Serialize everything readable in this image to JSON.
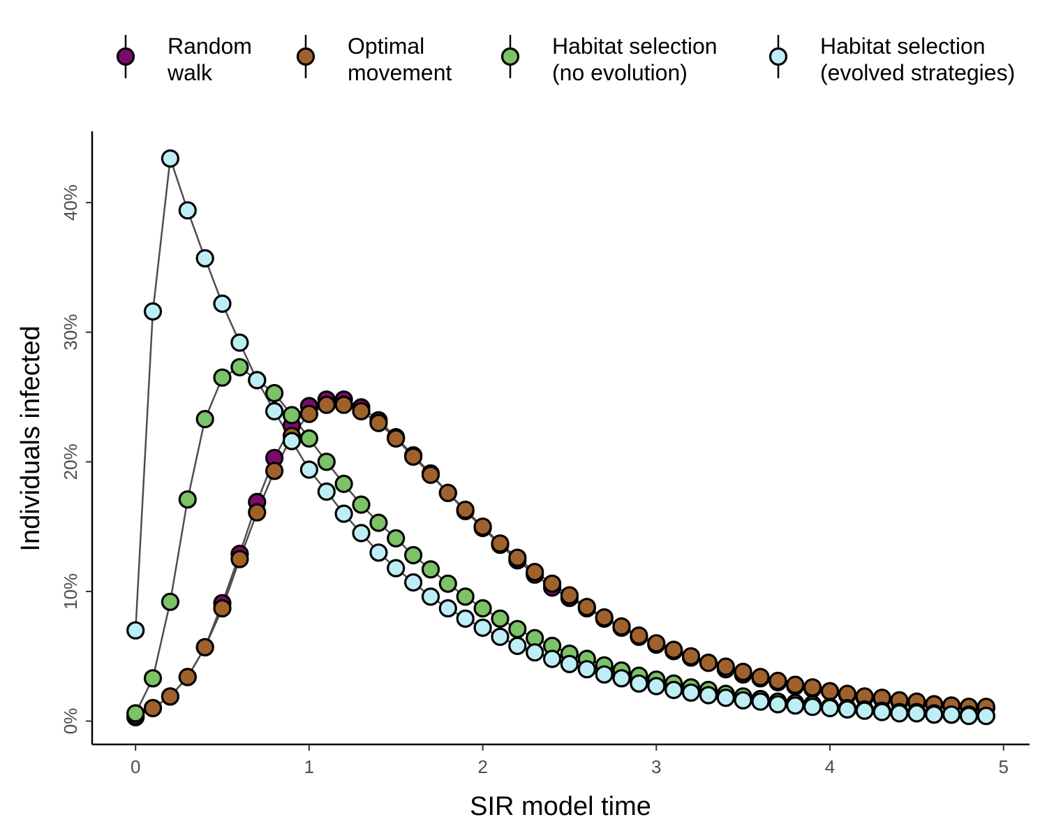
{
  "chart_data": {
    "type": "line",
    "title": "",
    "xlabel": "SIR model time",
    "ylabel": "Individuals infected",
    "xlim": [
      -0.25,
      5.15
    ],
    "ylim": [
      -1.8,
      45.5
    ],
    "x_ticks": [
      0,
      1,
      2,
      3,
      4,
      5
    ],
    "x_tick_labels": [
      "0",
      "1",
      "2",
      "3",
      "4",
      "5"
    ],
    "y_ticks": [
      0,
      10,
      20,
      30,
      40
    ],
    "y_tick_labels": [
      "0%",
      "10%",
      "20%",
      "30%",
      "40%"
    ],
    "grid": false,
    "legend_position": "top",
    "x": [
      0,
      0.1,
      0.2,
      0.3,
      0.4,
      0.5,
      0.6,
      0.7,
      0.8,
      0.9,
      1.0,
      1.1,
      1.2,
      1.3,
      1.4,
      1.5,
      1.6,
      1.7,
      1.8,
      1.9,
      2.0,
      2.1,
      2.2,
      2.3,
      2.4,
      2.5,
      2.6,
      2.7,
      2.8,
      2.9,
      3.0,
      3.1,
      3.2,
      3.3,
      3.4,
      3.5,
      3.6,
      3.7,
      3.8,
      3.9,
      4.0,
      4.1,
      4.2,
      4.3,
      4.4,
      4.5,
      4.6,
      4.7,
      4.8,
      4.9
    ],
    "series": [
      {
        "name": "Random walk",
        "legend_lines": [
          "Random",
          "walk"
        ],
        "color": "#7b0a6e",
        "values": [
          0.3,
          1.0,
          1.9,
          3.4,
          5.7,
          9.1,
          12.9,
          16.9,
          20.3,
          22.8,
          24.3,
          24.8,
          24.8,
          24.2,
          23.2,
          21.9,
          20.5,
          19.1,
          17.6,
          16.2,
          14.9,
          13.6,
          12.4,
          11.3,
          10.3,
          9.5,
          8.7,
          7.9,
          7.2,
          6.5,
          5.9,
          5.4,
          4.9,
          4.5,
          4.0,
          3.6,
          3.3,
          3.0,
          2.7,
          2.5,
          2.3,
          2.0,
          1.8,
          1.7,
          1.5,
          1.4,
          1.3,
          1.2,
          1.1,
          1.0
        ]
      },
      {
        "name": "Optimal movement",
        "legend_lines": [
          "Optimal",
          "movement"
        ],
        "color": "#a0622d",
        "values": [
          0.4,
          1.0,
          1.9,
          3.4,
          5.7,
          8.7,
          12.5,
          16.1,
          19.3,
          22.0,
          23.7,
          24.4,
          24.4,
          23.9,
          23.0,
          21.8,
          20.4,
          19.0,
          17.6,
          16.3,
          15.0,
          13.7,
          12.6,
          11.5,
          10.6,
          9.7,
          8.8,
          8.0,
          7.3,
          6.6,
          6.0,
          5.5,
          5.0,
          4.5,
          4.2,
          3.8,
          3.4,
          3.1,
          2.8,
          2.6,
          2.3,
          2.1,
          1.9,
          1.8,
          1.6,
          1.5,
          1.3,
          1.2,
          1.1,
          1.1
        ]
      },
      {
        "name": "Habitat selection (no evolution)",
        "legend_lines": [
          "Habitat selection",
          "(no evolution)"
        ],
        "color": "#7cc266",
        "values": [
          0.6,
          3.3,
          9.2,
          17.1,
          23.3,
          26.5,
          27.3,
          26.3,
          25.3,
          23.6,
          21.8,
          20.0,
          18.3,
          16.7,
          15.3,
          14.1,
          12.8,
          11.7,
          10.6,
          9.6,
          8.7,
          7.9,
          7.1,
          6.4,
          5.8,
          5.2,
          4.8,
          4.3,
          3.9,
          3.5,
          3.2,
          2.9,
          2.6,
          2.4,
          2.1,
          1.9,
          1.7,
          1.5,
          1.4,
          1.3,
          1.1,
          1.0,
          0.9,
          0.8,
          0.7,
          0.7,
          0.6,
          0.5,
          0.5,
          0.4
        ]
      },
      {
        "name": "Habitat selection (evolved strategies)",
        "legend_lines": [
          "Habitat selection",
          "(evolved strategies)"
        ],
        "color": "#bdeef5",
        "values": [
          7.0,
          31.6,
          43.4,
          39.4,
          35.7,
          32.2,
          29.2,
          26.3,
          23.9,
          21.6,
          19.4,
          17.7,
          16.0,
          14.5,
          13.0,
          11.8,
          10.7,
          9.6,
          8.7,
          7.9,
          7.2,
          6.5,
          5.8,
          5.3,
          4.8,
          4.4,
          4.0,
          3.6,
          3.3,
          2.9,
          2.7,
          2.4,
          2.2,
          2.0,
          1.8,
          1.6,
          1.5,
          1.3,
          1.2,
          1.1,
          1.0,
          0.9,
          0.8,
          0.7,
          0.6,
          0.6,
          0.5,
          0.5,
          0.4,
          0.4
        ]
      }
    ]
  }
}
